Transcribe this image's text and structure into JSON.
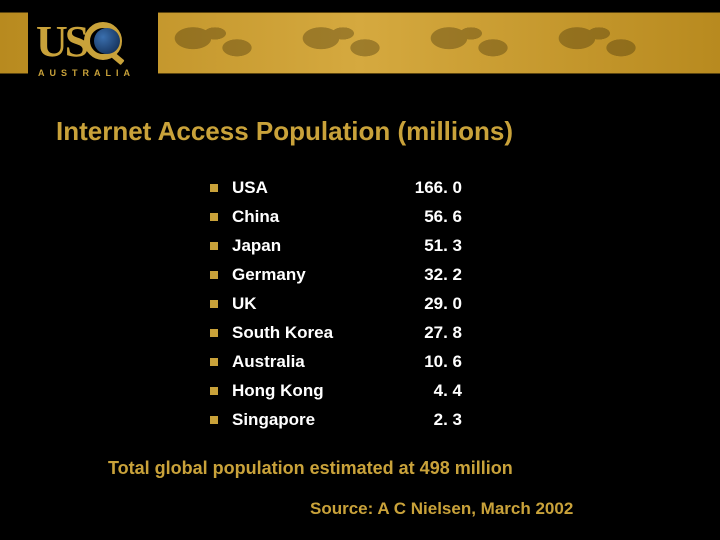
{
  "theme": {
    "background_color": "#000000",
    "accent_color": "#c9a23a",
    "text_color": "#ffffff",
    "bullet_color": "#c9a23a",
    "header_strip_gradient": [
      "#b88a1f",
      "#d5a93f",
      "#b88a1f"
    ]
  },
  "logo": {
    "mark_letters": "USQ",
    "subtitle": "AUSTRALIA",
    "globe_gradient": [
      "#3a6fae",
      "#1a3a66",
      "#0c1f3a"
    ]
  },
  "slide": {
    "title": "Internet Access Population (millions)",
    "title_fontsize_pt": 20,
    "title_fontweight": 900,
    "list_fontsize_pt": 13,
    "list_fontweight": 700,
    "items": [
      {
        "country": "USA",
        "value": "166. 0"
      },
      {
        "country": "China",
        "value": "56. 6"
      },
      {
        "country": "Japan",
        "value": "51. 3"
      },
      {
        "country": "Germany",
        "value": "32. 2"
      },
      {
        "country": "UK",
        "value": "29. 0"
      },
      {
        "country": "South Korea",
        "value": "27. 8"
      },
      {
        "country": "Australia",
        "value": "10. 6"
      },
      {
        "country": "Hong Kong",
        "value": "4. 4"
      },
      {
        "country": "Singapore",
        "value": "2. 3"
      }
    ],
    "footer": "Total global population estimated at 498 million",
    "footer_fontsize_pt": 14,
    "source": "Source:  A C Nielsen, March 2002",
    "source_fontsize_pt": 13
  }
}
